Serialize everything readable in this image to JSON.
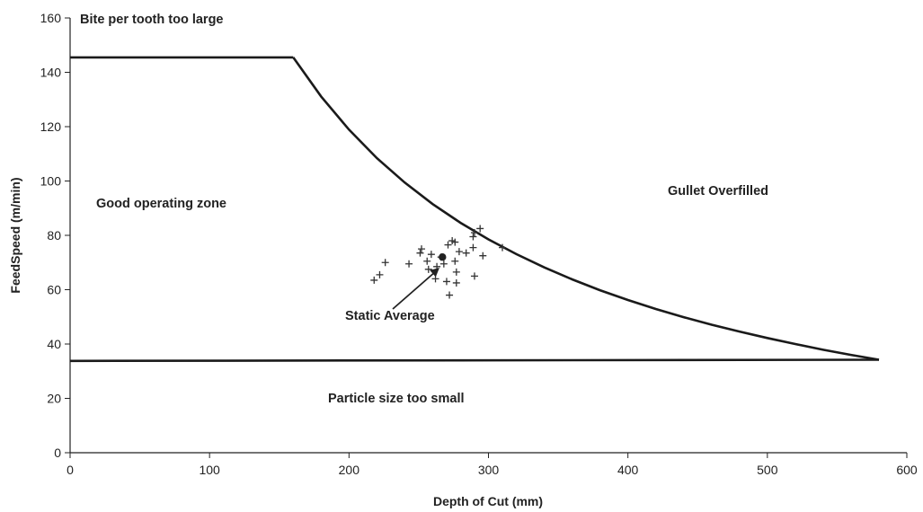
{
  "chart_data": {
    "type": "scatter",
    "title": "",
    "xlabel": "Depth of Cut (mm)",
    "ylabel": "FeedSpeed (m/min)",
    "xlim": [
      0,
      600
    ],
    "ylim": [
      0,
      160
    ],
    "x_ticks": [
      0,
      100,
      200,
      300,
      400,
      500,
      600
    ],
    "y_ticks": [
      0,
      20,
      40,
      60,
      80,
      100,
      120,
      140,
      160
    ],
    "grid": false,
    "legend": "none",
    "boundaries": [
      {
        "id": "bite-limit",
        "points": [
          [
            0,
            145.5
          ],
          [
            160,
            145.5
          ]
        ]
      },
      {
        "id": "gullet-limit-curve",
        "points": [
          [
            160,
            145.5
          ],
          [
            180,
            131.1
          ],
          [
            200,
            118.9
          ],
          [
            220,
            108.4
          ],
          [
            240,
            99.4
          ],
          [
            260,
            91.5
          ],
          [
            280,
            84.6
          ],
          [
            300,
            78.5
          ],
          [
            320,
            73.1
          ],
          [
            340,
            68.2
          ],
          [
            360,
            63.8
          ],
          [
            380,
            59.8
          ],
          [
            400,
            56.2
          ],
          [
            420,
            52.9
          ],
          [
            440,
            49.9
          ],
          [
            460,
            47.1
          ],
          [
            480,
            44.6
          ],
          [
            500,
            42.2
          ],
          [
            520,
            40.0
          ],
          [
            540,
            37.9
          ],
          [
            560,
            36.0
          ],
          [
            580,
            34.2
          ]
        ]
      },
      {
        "id": "particle-size-limit",
        "points": [
          [
            0,
            33.8
          ],
          [
            580,
            34.2
          ]
        ]
      }
    ],
    "series": [
      {
        "points": [
          [
            218,
            63.5
          ],
          [
            222,
            65.5
          ],
          [
            226,
            70
          ],
          [
            243,
            69.5
          ],
          [
            251,
            73.5
          ],
          [
            252,
            75
          ],
          [
            256,
            70.5
          ],
          [
            257,
            67.5
          ],
          [
            259,
            73
          ],
          [
            262,
            64
          ],
          [
            263,
            68.5
          ],
          [
            266,
            72
          ],
          [
            268,
            69.5
          ],
          [
            270,
            63
          ],
          [
            271,
            76.5
          ],
          [
            272,
            58
          ],
          [
            274,
            78
          ],
          [
            276,
            77.5
          ],
          [
            277,
            66.5
          ],
          [
            276,
            70.5
          ],
          [
            277,
            62.5
          ],
          [
            284,
            73.5
          ],
          [
            289,
            75.5
          ],
          [
            289,
            79.5
          ],
          [
            290,
            81
          ],
          [
            290,
            65
          ],
          [
            294,
            82.5
          ],
          [
            296,
            72.5
          ],
          [
            310,
            75.5
          ],
          [
            279,
            74
          ]
        ]
      }
    ],
    "static_average": [
      267,
      72
    ]
  },
  "annotations": {
    "bite": "Bite per tooth too large",
    "good": "Good operating zone",
    "gullet": "Gullet Overfilled",
    "particle": "Particle size too small",
    "static_avg": "Static Average"
  }
}
